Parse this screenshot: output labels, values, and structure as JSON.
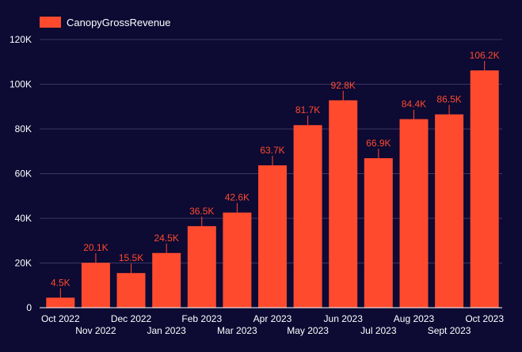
{
  "chart_data": {
    "type": "bar",
    "categories": [
      "Oct 2022",
      "Nov 2022",
      "Dec 2022",
      "Jan 2023",
      "Feb 2023",
      "Mar 2023",
      "Apr 2023",
      "May 2023",
      "Jun 2023",
      "Jul 2023",
      "Aug 2023",
      "Sept 2023",
      "Oct 2023"
    ],
    "series": [
      {
        "name": "CanopyGrossRevenue",
        "values": [
          4500,
          20100,
          15500,
          24500,
          36500,
          42600,
          63700,
          81700,
          92800,
          66900,
          84400,
          86500,
          106200
        ],
        "labels": [
          "4.5K",
          "20.1K",
          "15.5K",
          "24.5K",
          "36.5K",
          "42.6K",
          "63.7K",
          "81.7K",
          "92.8K",
          "66.9K",
          "84.4K",
          "86.5K",
          "106.2K"
        ]
      }
    ],
    "ylim": [
      0,
      120000
    ],
    "yticks": [
      0,
      20000,
      40000,
      60000,
      80000,
      100000,
      120000
    ],
    "ytick_labels": [
      "0",
      "20K",
      "40K",
      "60K",
      "80K",
      "100K",
      "120K"
    ],
    "grid": true,
    "legend_position": "top-left",
    "colors": {
      "background": "#0d0a33",
      "bar": "#ff4a2e",
      "grid": "#3a3763",
      "text": "#ffffff"
    }
  }
}
